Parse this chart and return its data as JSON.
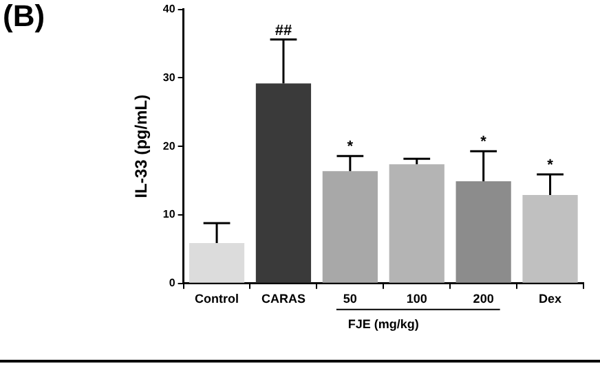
{
  "chart_data": {
    "type": "bar",
    "title": "(B)",
    "ylabel": "IL-33 (pg/mL)",
    "xlabel": "FJE (mg/kg)",
    "categories": [
      "Control",
      "CARAS",
      "50",
      "100",
      "200",
      "Dex"
    ],
    "values": [
      5.9,
      29.2,
      16.4,
      17.4,
      14.9,
      12.9
    ],
    "errors": [
      2.9,
      6.4,
      2.2,
      0.8,
      4.4,
      3.0
    ],
    "colors": [
      "#dcdcdc",
      "#3a3a3a",
      "#a8a8a8",
      "#b4b4b4",
      "#8c8c8c",
      "#c0c0c0"
    ],
    "ylim": [
      0,
      40
    ],
    "yticks": [
      0,
      10,
      20,
      30,
      40
    ],
    "grid": false,
    "legend": false,
    "annotations": [
      {
        "text": "##",
        "x": "CARAS",
        "y": 35.6
      },
      {
        "text": "*",
        "x": "50",
        "y": 18.6
      },
      {
        "text": "*",
        "x": "200",
        "y": 19.3
      },
      {
        "text": "*",
        "x": "Dex",
        "y": 15.9
      }
    ]
  }
}
